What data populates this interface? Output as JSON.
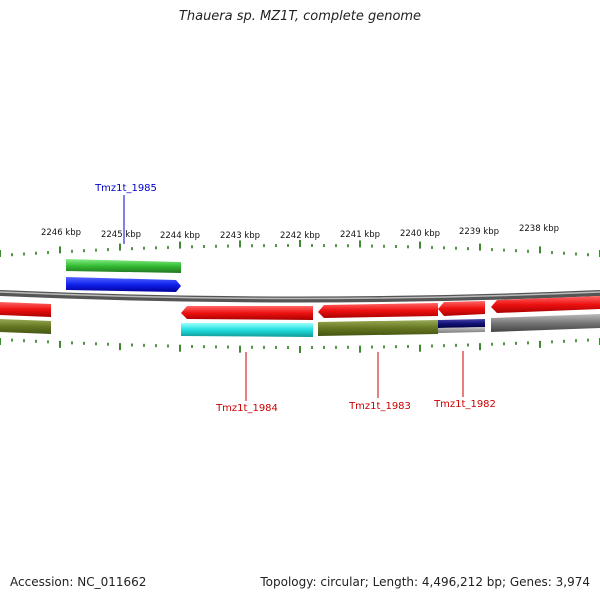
{
  "title": "Thauera sp. MZ1T, complete genome",
  "footer": {
    "accession": "Accession: NC_011662",
    "summary": "Topology: circular; Length: 4,496,212 bp; Genes: 3,974"
  },
  "ticks": [
    "2246 kbp",
    "2245 kbp",
    "2244 kbp",
    "2243 kbp",
    "2242 kbp",
    "2241 kbp",
    "2240 kbp",
    "2239 kbp",
    "2238 kbp"
  ],
  "gene_labels": [
    {
      "name": "Tmz1t_1985",
      "color": "#0000cc"
    },
    {
      "name": "Tmz1t_1984",
      "color": "#cc0000"
    },
    {
      "name": "Tmz1t_1983",
      "color": "#cc0000"
    },
    {
      "name": "Tmz1t_1982",
      "color": "#cc0000"
    }
  ],
  "colors": {
    "red": "#ee1111",
    "green": "#33bb33",
    "blue": "#1122ee",
    "cyan": "#22dddd",
    "olive": "#667722",
    "navy": "#111177",
    "gray": "#777777",
    "tick": "#2a7a1a"
  }
}
